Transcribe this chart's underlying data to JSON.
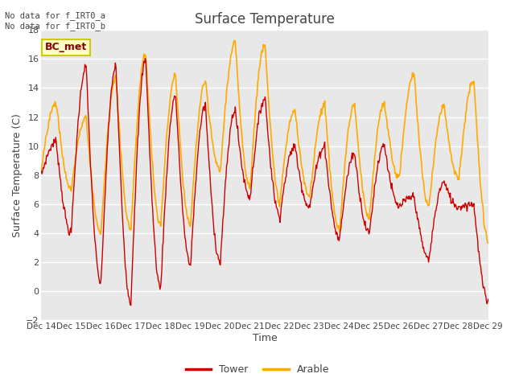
{
  "title": "Surface Temperature",
  "ylabel": "Surface Temperature (C)",
  "xlabel": "Time",
  "ylim": [
    -2,
    18
  ],
  "yticks": [
    -2,
    0,
    2,
    4,
    6,
    8,
    10,
    12,
    14,
    16,
    18
  ],
  "plot_bg_color": "#e8e8e8",
  "tower_color": "#cc0000",
  "arable_color": "#ffaa00",
  "annotation_top": "No data for f_IRT0_a\nNo data for f_IRT0_b",
  "bc_met_label": "BC_met",
  "legend_tower": "Tower",
  "legend_arable": "Arable",
  "xtick_labels": [
    "Dec 14",
    "Dec 15",
    "Dec 16",
    "Dec 17",
    "Dec 18",
    "Dec 19",
    "Dec 20",
    "Dec 21",
    "Dec 22",
    "Dec 23",
    "Dec 24",
    "Dec 25",
    "Dec 26",
    "Dec 27",
    "Dec 28",
    "Dec 29"
  ],
  "num_points": 720,
  "tower_peaks": [
    10.3,
    15.5,
    15.5,
    16.0,
    13.5,
    12.8,
    12.5,
    13.3,
    10.0,
    10.0,
    9.5,
    10.1,
    6.5,
    7.5,
    6.0,
    10.0,
    11.5,
    12.0
  ],
  "tower_troughs": [
    8.0,
    4.0,
    0.5,
    -0.8,
    0.2,
    1.8,
    2.0,
    6.5,
    5.2,
    5.8,
    3.6,
    4.0,
    5.8,
    2.2,
    5.8,
    -0.8,
    1.6,
    1.7
  ],
  "arable_peaks": [
    13.0,
    12.0,
    14.7,
    16.4,
    14.9,
    14.4,
    17.1,
    17.1,
    12.5,
    12.9,
    12.9,
    13.0,
    15.0,
    12.8,
    14.5,
    14.8,
    15.6,
    15.6
  ],
  "arable_troughs": [
    8.5,
    7.0,
    4.0,
    4.2,
    4.5,
    4.5,
    8.3,
    7.2,
    6.2,
    6.5,
    4.2,
    5.0,
    7.8,
    5.8,
    7.8,
    3.4,
    4.4,
    4.4
  ]
}
